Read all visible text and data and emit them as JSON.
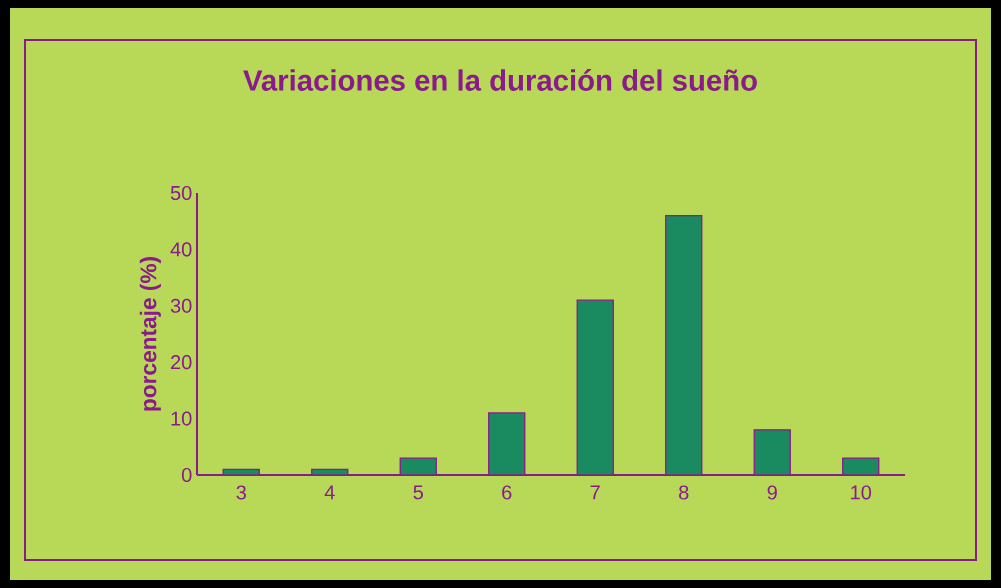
{
  "chart_data": {
    "type": "bar",
    "title": "Variaciones en la duración del sueño",
    "ylabel": "porcentaje (%)",
    "categories": [
      "3",
      "4",
      "5",
      "6",
      "7",
      "8",
      "9",
      "10"
    ],
    "values": [
      1,
      1,
      3,
      11,
      31,
      46,
      8,
      3
    ],
    "color": "#1a8a60",
    "ylim": [
      0,
      50
    ],
    "yticks": [
      0,
      10,
      20,
      30,
      40,
      50
    ],
    "grid": false
  }
}
